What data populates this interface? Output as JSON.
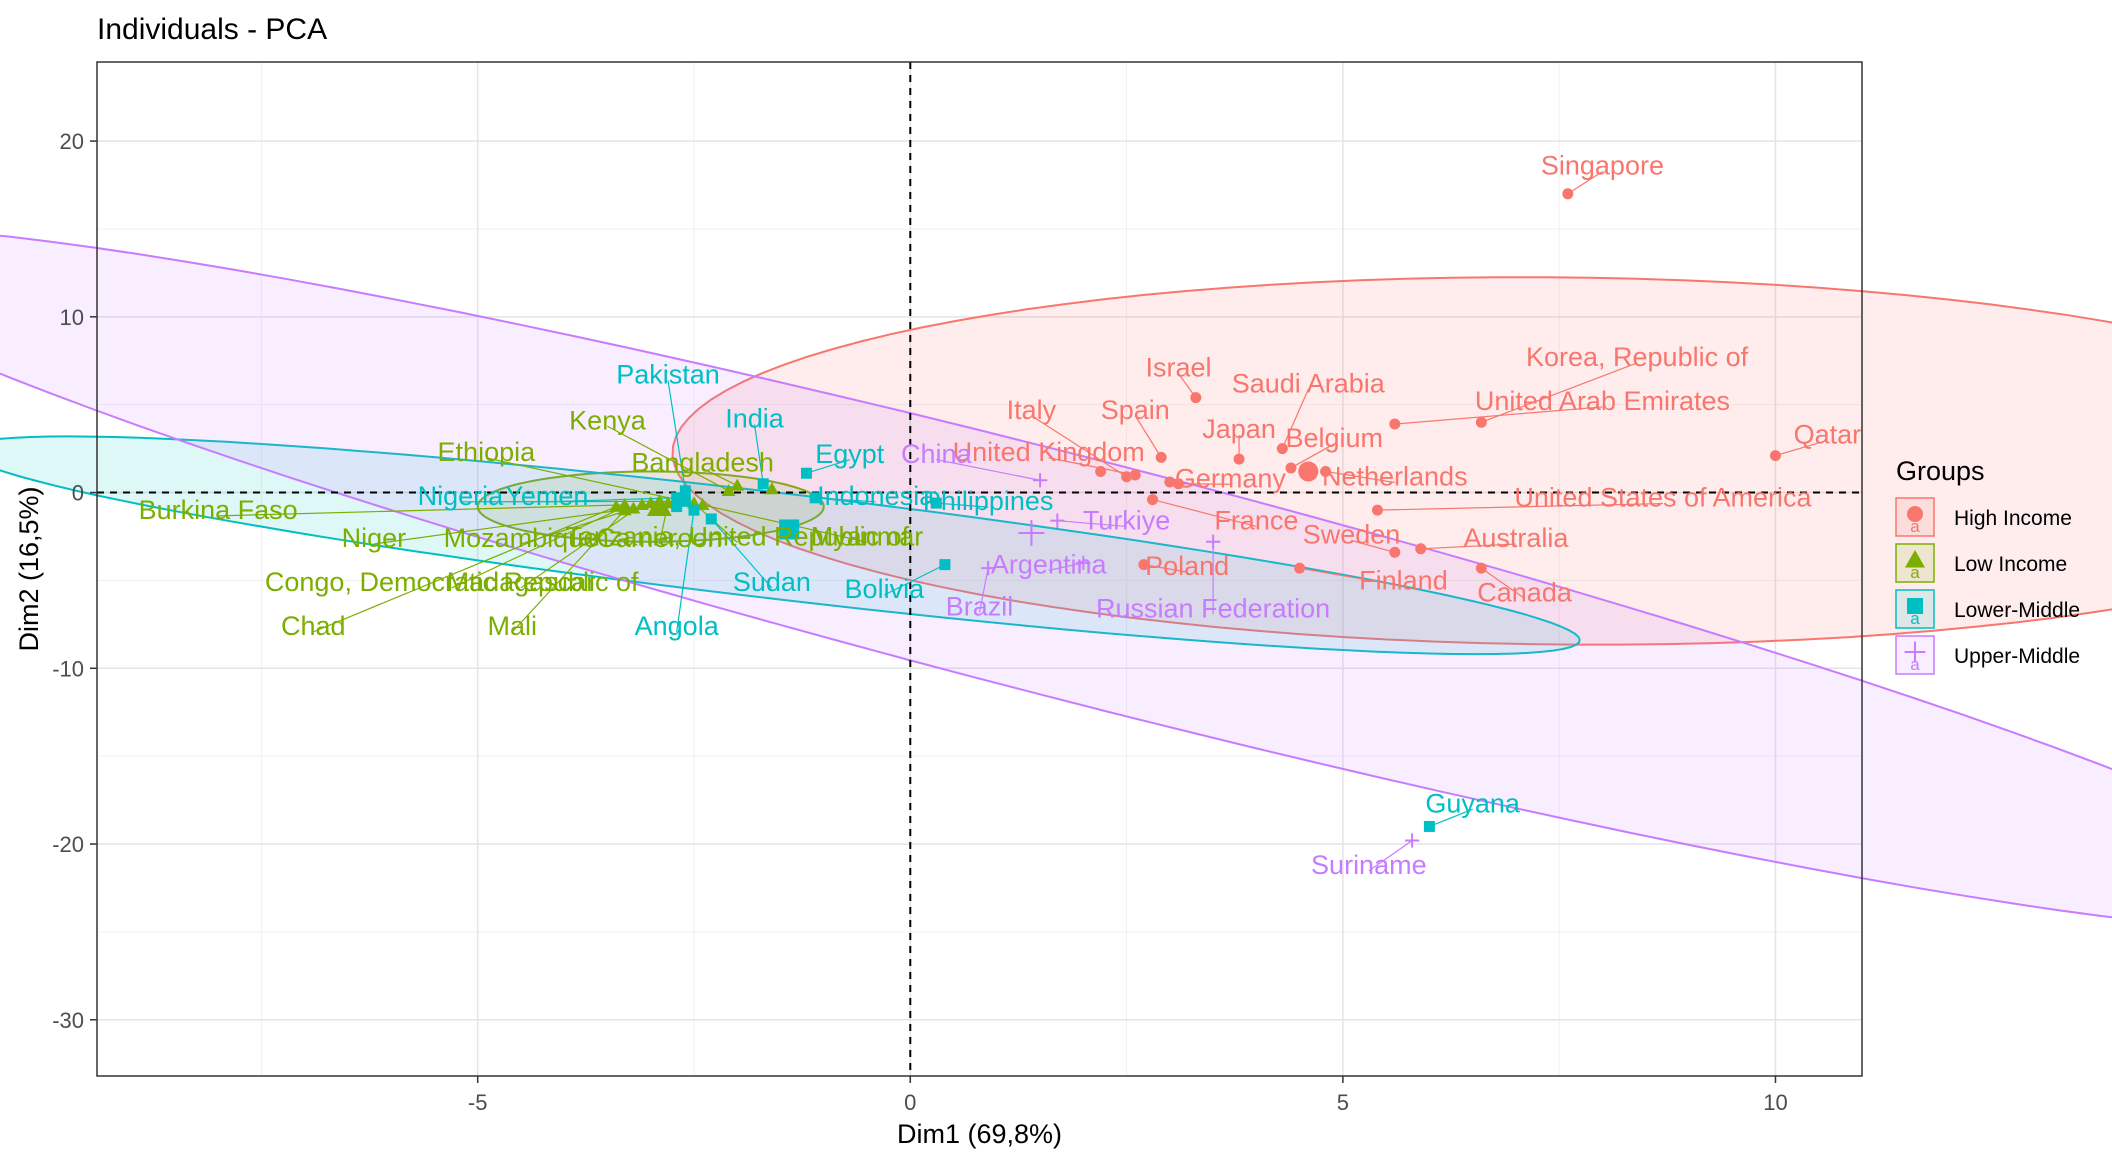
{
  "chart_data": {
    "type": "scatter",
    "title": "Individuals - PCA",
    "xlabel": "Dim1 (69,8%)",
    "ylabel": "Dim2 (16,5%)",
    "xlim": [
      -9.4,
      11.0
    ],
    "ylim": [
      -33.2,
      24.5
    ],
    "x_ticks": [
      -5,
      0,
      5,
      10
    ],
    "y_ticks": [
      -30,
      -20,
      -10,
      0,
      10,
      20
    ],
    "grid": true,
    "reference_lines": {
      "x": 0,
      "y": 0
    },
    "legend": {
      "title": "Groups",
      "position": "right",
      "entry_glyph": "a"
    },
    "groups": [
      {
        "name": "High Income",
        "color": "#F8766D",
        "marker": "circle",
        "centroid": [
          4.6,
          1.2
        ],
        "ellipse": {
          "cx": 7.5,
          "cy": 1.8,
          "rx": 10.6,
          "ry": 10.1,
          "rotation": -1.0
        },
        "points": [
          {
            "label": "Singapore",
            "x": 7.6,
            "y": 17.0,
            "lx": 8.0,
            "ly": 18.5
          },
          {
            "label": "Qatar",
            "x": 10.0,
            "y": 2.1,
            "lx": 10.6,
            "ly": 3.2
          },
          {
            "label": "Korea, Republic of",
            "x": 6.6,
            "y": 4.0,
            "lx": 8.4,
            "ly": 7.6
          },
          {
            "label": "United Arab Emirates",
            "x": 5.6,
            "y": 3.9,
            "lx": 8.0,
            "ly": 5.1
          },
          {
            "label": "Israel",
            "x": 3.3,
            "y": 5.4,
            "lx": 3.1,
            "ly": 7.0
          },
          {
            "label": "Saudi Arabia",
            "x": 4.3,
            "y": 2.5,
            "lx": 4.6,
            "ly": 6.1
          },
          {
            "label": "Japan",
            "x": 3.8,
            "y": 1.9,
            "lx": 3.8,
            "ly": 3.5
          },
          {
            "label": "Belgium",
            "x": 4.4,
            "y": 1.4,
            "lx": 4.9,
            "ly": 3.0
          },
          {
            "label": "Spain",
            "x": 2.9,
            "y": 2.0,
            "lx": 2.6,
            "ly": 4.6
          },
          {
            "label": "Italy",
            "x": 2.5,
            "y": 0.9,
            "lx": 1.4,
            "ly": 4.6
          },
          {
            "label": "United Kingdom",
            "x": 2.6,
            "y": 1.0,
            "lx": 1.6,
            "ly": 2.2
          },
          {
            "label": "Netherlands",
            "x": 4.8,
            "y": 1.2,
            "lx": 5.6,
            "ly": 0.8
          },
          {
            "label": "Germany",
            "x": 3.1,
            "y": 0.5,
            "lx": 3.7,
            "ly": 0.7
          },
          {
            "label": "United States of America",
            "x": 5.4,
            "y": -1.0,
            "lx": 8.7,
            "ly": -0.4
          },
          {
            "label": "France",
            "x": 2.8,
            "y": -0.4,
            "lx": 4.0,
            "ly": -1.7
          },
          {
            "label": "Sweden",
            "x": 5.6,
            "y": -3.4,
            "lx": 5.1,
            "ly": -2.5
          },
          {
            "label": "Australia",
            "x": 5.9,
            "y": -3.2,
            "lx": 7.0,
            "ly": -2.7
          },
          {
            "label": "Poland",
            "x": 2.7,
            "y": -4.1,
            "lx": 3.2,
            "ly": -4.3
          },
          {
            "label": "Finland",
            "x": 4.5,
            "y": -4.3,
            "lx": 5.7,
            "ly": -5.1
          },
          {
            "label": "Canada",
            "x": 6.6,
            "y": -4.3,
            "lx": 7.1,
            "ly": -5.8
          },
          {
            "label": "",
            "x": 4.6,
            "y": 1.2
          },
          {
            "label": "",
            "x": 2.2,
            "y": 1.2
          },
          {
            "label": "",
            "x": 3.0,
            "y": 0.6
          }
        ]
      },
      {
        "name": "Low Income",
        "color": "#7CAE00",
        "marker": "triangle",
        "centroid": [
          -2.9,
          -0.8
        ],
        "ellipse": {
          "cx": -3.0,
          "cy": -0.8,
          "rx": 2.0,
          "ry": 2.0,
          "rotation": -0.35
        },
        "points": [
          {
            "label": "Burkina Faso",
            "x": -3.3,
            "y": -0.7,
            "lx": -8.0,
            "ly": -1.1
          },
          {
            "label": "Ethiopia",
            "x": -2.7,
            "y": -0.4,
            "lx": -4.9,
            "ly": 2.2
          },
          {
            "label": "Kenya",
            "x": -2.1,
            "y": 0.1,
            "lx": -3.5,
            "ly": 4.0
          },
          {
            "label": "Bangladesh",
            "x": -2.0,
            "y": 0.4,
            "lx": -2.4,
            "ly": 1.6
          },
          {
            "label": "Niger",
            "x": -3.2,
            "y": -0.9,
            "lx": -6.2,
            "ly": -2.7
          },
          {
            "label": "Mozambique",
            "x": -3.0,
            "y": -0.6,
            "lx": -4.5,
            "ly": -2.7
          },
          {
            "label": "Tanzania, United Republic of",
            "x": -2.5,
            "y": -0.6,
            "lx": -2.0,
            "ly": -2.6
          },
          {
            "label": "Congo, Democratic Republic of",
            "x": -3.3,
            "y": -0.8,
            "lx": -5.3,
            "ly": -5.2
          },
          {
            "label": "Madagascar",
            "x": -3.1,
            "y": -0.7,
            "lx": -4.5,
            "ly": -5.2
          },
          {
            "label": "Chad",
            "x": -3.4,
            "y": -0.8,
            "lx": -6.9,
            "ly": -7.7
          },
          {
            "label": "Mali",
            "x": -3.3,
            "y": -1.0,
            "lx": -4.6,
            "ly": -7.7
          },
          {
            "label": "Cameroon",
            "x": -2.8,
            "y": -0.6,
            "lx": -2.9,
            "ly": -2.7
          },
          {
            "label": "Myanmar",
            "x": -2.4,
            "y": -0.7,
            "lx": -0.5,
            "ly": -2.6
          },
          {
            "label": "",
            "x": -2.9,
            "y": -0.8
          },
          {
            "label": "",
            "x": -1.6,
            "y": 0.2
          }
        ]
      },
      {
        "name": "Lower-Middle",
        "color": "#00BFC4",
        "marker": "square",
        "centroid": [
          -1.4,
          -2.1
        ],
        "ellipse": {
          "cx": -1.6,
          "cy": -3.0,
          "rx": 10.9,
          "ry": 2.6,
          "rotation": -0.56
        },
        "points": [
          {
            "label": "Pakistan",
            "x": -2.6,
            "y": 0.1,
            "lx": -2.8,
            "ly": 6.6
          },
          {
            "label": "India",
            "x": -1.7,
            "y": 0.5,
            "lx": -1.8,
            "ly": 4.1
          },
          {
            "label": "Egypt",
            "x": -1.2,
            "y": 1.1,
            "lx": -0.7,
            "ly": 2.1
          },
          {
            "label": "Nigeria",
            "x": -2.6,
            "y": -0.5,
            "lx": -5.2,
            "ly": -0.3
          },
          {
            "label": "Yemen",
            "x": -2.7,
            "y": -0.3,
            "lx": -4.2,
            "ly": -0.3
          },
          {
            "label": "Indonesia",
            "x": -1.1,
            "y": -0.3,
            "lx": -0.4,
            "ly": -0.3
          },
          {
            "label": "Philippines",
            "x": 0.3,
            "y": -0.6,
            "lx": 0.9,
            "ly": -0.6
          },
          {
            "label": "Sudan",
            "x": -2.3,
            "y": -1.5,
            "lx": -1.6,
            "ly": -5.2
          },
          {
            "label": "Bolivia",
            "x": 0.4,
            "y": -4.1,
            "lx": -0.3,
            "ly": -5.6
          },
          {
            "label": "Angola",
            "x": -2.5,
            "y": -1.0,
            "lx": -2.7,
            "ly": -7.7
          },
          {
            "label": "Guyana",
            "x": 6.0,
            "y": -19.0,
            "lx": 6.5,
            "ly": -17.8
          },
          {
            "label": "",
            "x": -1.4,
            "y": -2.1
          },
          {
            "label": "",
            "x": -2.7,
            "y": -0.8
          }
        ]
      },
      {
        "name": "Upper-Middle",
        "color": "#C77CFF",
        "marker": "plus",
        "centroid": [
          1.4,
          -2.3
        ],
        "ellipse": {
          "cx": 1.9,
          "cy": -4.9,
          "rx": 24.6,
          "ry": 4.3,
          "rotation": -0.94
        },
        "points": [
          {
            "label": "China",
            "x": 1.5,
            "y": 0.7,
            "lx": 0.3,
            "ly": 2.1
          },
          {
            "label": "Turkiye",
            "x": 1.7,
            "y": -1.6,
            "lx": 2.5,
            "ly": -1.7
          },
          {
            "label": "Argentina",
            "x": 2.0,
            "y": -4.0,
            "lx": 1.6,
            "ly": -4.2
          },
          {
            "label": "Brazil",
            "x": 0.9,
            "y": -4.3,
            "lx": 0.8,
            "ly": -6.6
          },
          {
            "label": "Russian Federation",
            "x": 3.5,
            "y": -2.8,
            "lx": 3.5,
            "ly": -6.7
          },
          {
            "label": "Suriname",
            "x": 5.8,
            "y": -19.8,
            "lx": 5.3,
            "ly": -21.3
          },
          {
            "label": "",
            "x": 1.4,
            "y": -2.3
          }
        ]
      }
    ]
  }
}
